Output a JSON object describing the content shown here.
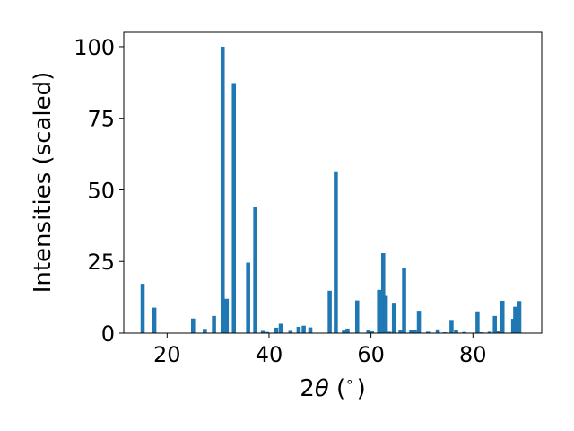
{
  "chart_data": {
    "type": "bar",
    "xlabel_parts": {
      "pre": "2",
      "theta": "θ",
      "post": " (",
      "degree": "∘",
      "close": ")"
    },
    "ylabel": "Intensities (scaled)",
    "xlim": [
      11.5,
      93.5
    ],
    "ylim": [
      0,
      105
    ],
    "xticks": [
      20,
      40,
      60,
      80
    ],
    "yticks": [
      0,
      25,
      50,
      75,
      100
    ],
    "bar_width": 0.8,
    "color": "#1f77b4",
    "x": [
      15.2,
      17.5,
      25.1,
      27.4,
      29.2,
      30.9,
      31.7,
      33.1,
      35.9,
      37.3,
      38.8,
      39.6,
      41.4,
      42.3,
      44.2,
      45.8,
      46.8,
      48.1,
      51.9,
      53.1,
      54.7,
      55.4,
      57.3,
      59.5,
      60.2,
      61.6,
      62.4,
      62.9,
      63.6,
      64.5,
      65.8,
      66.5,
      67.9,
      68.6,
      69.4,
      71.2,
      73.1,
      74.5,
      75.8,
      76.7,
      78.3,
      80.9,
      81.7,
      83.3,
      84.3,
      84.9,
      85.8,
      87.9,
      88.3,
      89.1
    ],
    "values": [
      17.2,
      8.9,
      5.1,
      1.5,
      6.0,
      100.0,
      12.0,
      87.3,
      24.6,
      44.0,
      0.8,
      0.4,
      1.9,
      3.3,
      0.8,
      2.2,
      2.6,
      2.0,
      14.8,
      56.5,
      0.9,
      1.6,
      11.4,
      1.0,
      0.6,
      15.1,
      27.9,
      13.0,
      0.5,
      10.3,
      1.1,
      22.7,
      1.2,
      1.0,
      7.8,
      0.5,
      1.3,
      0.3,
      4.6,
      1.0,
      0.4,
      7.6,
      0.3,
      0.5,
      6.0,
      0.6,
      11.3,
      5.0,
      9.2,
      11.2
    ]
  }
}
